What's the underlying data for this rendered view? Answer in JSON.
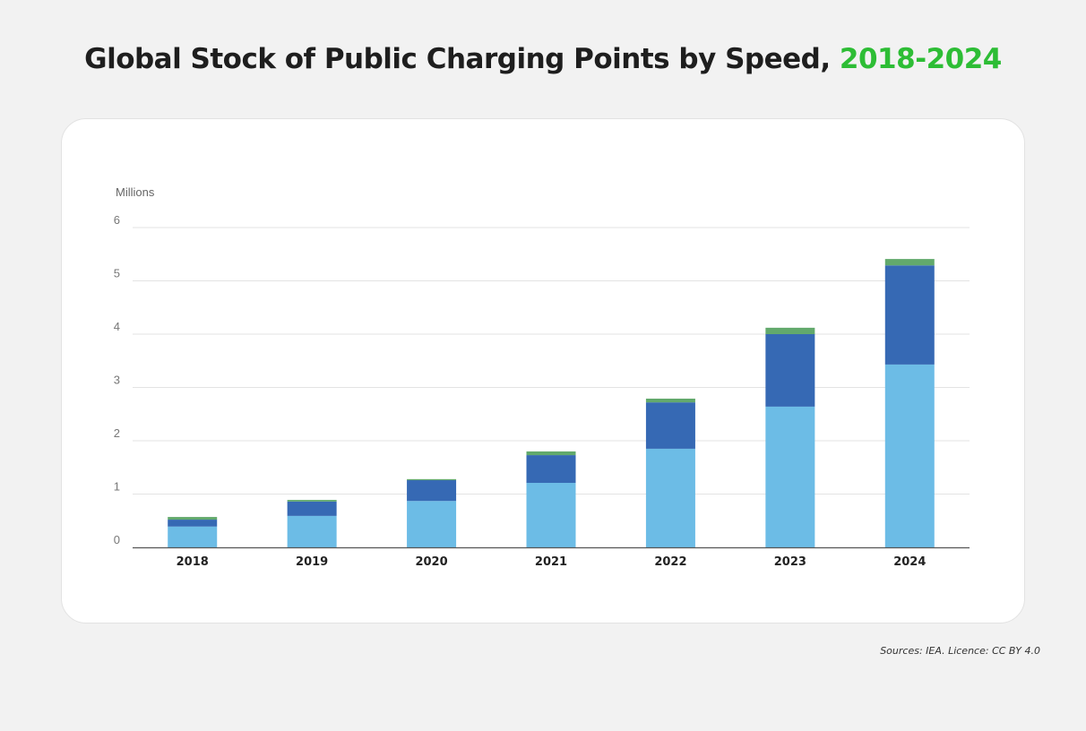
{
  "title": {
    "main": "Global Stock of Public Charging Points by Speed, ",
    "highlight": "2018-2024",
    "highlight_color": "#2dbd35"
  },
  "source": "Sources: IEA. Licence: CC BY 4.0",
  "chart_data": {
    "type": "bar",
    "stacked": true,
    "title": "Global Stock of Public Charging Points by Speed, 2018-2024",
    "ylabel": "Millions",
    "xlabel": "",
    "ylim": [
      0,
      6
    ],
    "yticks": [
      "0",
      "1",
      "2",
      "3",
      "4",
      "5",
      "6"
    ],
    "grid": true,
    "legend": "none",
    "categories": [
      "2018",
      "2019",
      "2020",
      "2021",
      "2022",
      "2023",
      "2024"
    ],
    "series": [
      {
        "color": "#6cbce6",
        "values": [
          0.39,
          0.59,
          0.87,
          1.21,
          1.85,
          2.64,
          3.43
        ]
      },
      {
        "color": "#3669b4",
        "values": [
          0.13,
          0.27,
          0.39,
          0.52,
          0.87,
          1.36,
          1.86
        ]
      },
      {
        "color": "#62a96c",
        "values": [
          0.05,
          0.03,
          0.02,
          0.07,
          0.07,
          0.12,
          0.12
        ]
      }
    ]
  }
}
